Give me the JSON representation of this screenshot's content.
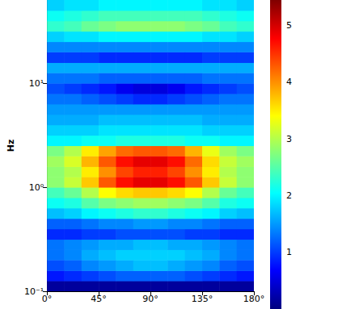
{
  "chart_data": {
    "type": "heatmap",
    "ylabel": "Hz",
    "log": "y",
    "grid": false,
    "xlim": [
      0,
      180
    ],
    "xticks": [
      {
        "value": 0,
        "label": "0°"
      },
      {
        "value": 45,
        "label": "45°"
      },
      {
        "value": 90,
        "label": "90°"
      },
      {
        "value": 135,
        "label": "135°"
      },
      {
        "value": 180,
        "label": "180°"
      }
    ],
    "ylim": [
      0.1,
      63.1
    ],
    "yticks": [
      {
        "value": 0.1,
        "label": "10⁻¹"
      },
      {
        "value": 1,
        "label": "10⁰"
      },
      {
        "value": 10,
        "label": "10¹"
      }
    ],
    "colorbar_range": [
      0,
      5.45
    ],
    "colorbar_ticks": [
      1,
      2,
      3,
      4,
      5
    ],
    "x_edges": [
      0,
      15,
      30,
      45,
      60,
      75,
      90,
      105,
      120,
      135,
      150,
      165,
      180
    ],
    "y_edges": [
      0.1,
      0.126,
      0.158,
      0.2,
      0.251,
      0.316,
      0.398,
      0.501,
      0.631,
      0.794,
      1,
      1.26,
      1.58,
      2,
      2.51,
      3.16,
      3.98,
      5.01,
      6.31,
      7.94,
      10,
      12.6,
      15.8,
      20,
      25.1,
      31.6,
      39.8,
      50.1,
      63.1
    ],
    "z": [
      [
        0.15,
        0.15,
        0.15,
        0.15,
        0.15,
        0.15,
        0.15,
        0.15,
        0.15,
        0.15,
        0.15,
        0.15
      ],
      [
        0.8,
        0.9,
        1.0,
        1.1,
        1.2,
        1.2,
        1.2,
        1.2,
        1.1,
        1.0,
        0.9,
        0.8
      ],
      [
        1.1,
        1.2,
        1.4,
        1.5,
        1.6,
        1.7,
        1.7,
        1.6,
        1.5,
        1.4,
        1.2,
        1.1
      ],
      [
        1.3,
        1.4,
        1.6,
        1.7,
        1.8,
        1.8,
        1.8,
        1.8,
        1.7,
        1.6,
        1.4,
        1.3
      ],
      [
        1.3,
        1.4,
        1.5,
        1.6,
        1.6,
        1.7,
        1.7,
        1.6,
        1.6,
        1.5,
        1.4,
        1.3
      ],
      [
        0.9,
        0.9,
        1.0,
        1.0,
        1.1,
        1.1,
        1.1,
        1.1,
        1.0,
        1.0,
        0.9,
        0.9
      ],
      [
        1.2,
        1.2,
        1.3,
        1.4,
        1.4,
        1.5,
        1.5,
        1.4,
        1.4,
        1.3,
        1.2,
        1.2
      ],
      [
        1.7,
        1.8,
        2.0,
        2.1,
        2.2,
        2.3,
        2.3,
        2.2,
        2.1,
        2.0,
        1.8,
        1.7
      ],
      [
        2.1,
        2.2,
        2.5,
        2.7,
        2.8,
        2.9,
        2.9,
        2.8,
        2.7,
        2.5,
        2.2,
        2.1
      ],
      [
        2.4,
        2.6,
        3.0,
        3.4,
        3.6,
        3.7,
        3.7,
        3.6,
        3.4,
        3.0,
        2.6,
        2.4
      ],
      [
        2.8,
        3.1,
        3.7,
        4.3,
        4.7,
        4.9,
        4.9,
        4.7,
        4.3,
        3.7,
        3.1,
        2.8
      ],
      [
        2.8,
        3.0,
        3.5,
        4.0,
        4.4,
        4.6,
        4.6,
        4.4,
        4.0,
        3.5,
        3.0,
        2.8
      ],
      [
        2.9,
        3.2,
        3.8,
        4.3,
        4.7,
        4.9,
        4.9,
        4.7,
        4.2,
        3.6,
        3.1,
        2.9
      ],
      [
        2.7,
        3.0,
        3.5,
        3.9,
        4.2,
        4.3,
        4.3,
        4.2,
        3.8,
        3.3,
        2.9,
        2.7
      ],
      [
        2.0,
        2.0,
        2.1,
        2.1,
        2.2,
        2.2,
        2.2,
        2.2,
        2.1,
        2.1,
        2.0,
        2.0
      ],
      [
        1.8,
        1.8,
        1.8,
        1.9,
        1.9,
        1.9,
        1.9,
        1.9,
        1.9,
        1.8,
        1.8,
        1.8
      ],
      [
        1.6,
        1.6,
        1.6,
        1.7,
        1.7,
        1.7,
        1.7,
        1.7,
        1.7,
        1.6,
        1.6,
        1.6
      ],
      [
        1.5,
        1.5,
        1.5,
        1.5,
        1.5,
        1.5,
        1.5,
        1.5,
        1.5,
        1.5,
        1.5,
        1.5
      ],
      [
        1.3,
        1.3,
        1.2,
        1.1,
        1.0,
        0.9,
        0.9,
        1.0,
        1.1,
        1.2,
        1.3,
        1.3
      ],
      [
        1.1,
        1.0,
        0.9,
        0.8,
        0.6,
        0.5,
        0.5,
        0.6,
        0.8,
        0.9,
        1.0,
        1.1
      ],
      [
        1.3,
        1.3,
        1.3,
        1.2,
        1.2,
        1.2,
        1.2,
        1.2,
        1.2,
        1.3,
        1.3,
        1.3
      ],
      [
        1.6,
        1.6,
        1.6,
        1.6,
        1.6,
        1.6,
        1.6,
        1.6,
        1.6,
        1.6,
        1.6,
        1.6
      ],
      [
        1.0,
        1.0,
        1.0,
        0.9,
        0.9,
        0.9,
        0.9,
        0.9,
        0.9,
        1.0,
        1.0,
        1.0
      ],
      [
        1.4,
        1.4,
        1.4,
        1.4,
        1.4,
        1.4,
        1.4,
        1.4,
        1.4,
        1.4,
        1.4,
        1.4
      ],
      [
        1.8,
        1.9,
        1.9,
        2.0,
        2.0,
        2.0,
        2.0,
        2.0,
        2.0,
        1.9,
        1.9,
        1.8
      ],
      [
        2.3,
        2.4,
        2.6,
        2.7,
        2.8,
        2.8,
        2.8,
        2.8,
        2.7,
        2.6,
        2.4,
        2.3
      ],
      [
        2.1,
        2.2,
        2.3,
        2.4,
        2.4,
        2.4,
        2.4,
        2.4,
        2.4,
        2.3,
        2.2,
        2.1
      ],
      [
        1.8,
        1.9,
        1.9,
        2.0,
        2.0,
        2.0,
        2.0,
        2.0,
        2.0,
        1.9,
        1.9,
        1.8
      ]
    ]
  }
}
